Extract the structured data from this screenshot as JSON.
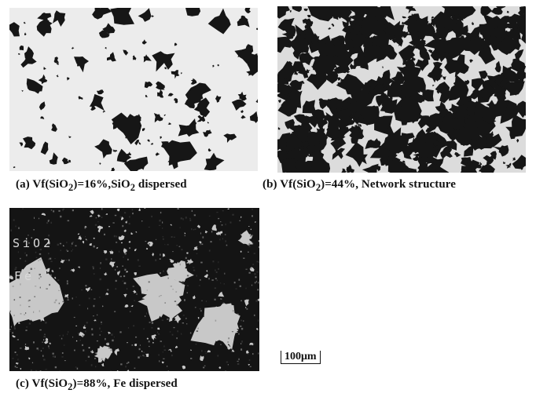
{
  "figure": {
    "panels": [
      {
        "id": "a",
        "caption_html": "(a) Vf(SiO<sub>2</sub>)=16%,SiO<sub>2</sub> dispersed",
        "vf_sio2_percent": 16,
        "structure": "SiO2 dispersed"
      },
      {
        "id": "b",
        "caption_html": "(b) Vf(SiO<sub>2</sub>)=44%, Network structure",
        "vf_sio2_percent": 44,
        "structure": "Network structure"
      },
      {
        "id": "c",
        "caption_html": "(c) Vf(SiO<sub>2</sub>)=88%, Fe dispersed",
        "vf_sio2_percent": 88,
        "structure": "Fe dispersed",
        "phase_labels": {
          "sio2": "SiO2",
          "fe": "Fe"
        }
      }
    ],
    "scale_bar": "100μm"
  },
  "colors": {
    "panel_a_bg": "#ececec",
    "panel_b_bg": "#dcdcdc",
    "panel_c_bg": "#141414",
    "particle_dark": "#161616",
    "particle_light": "#c8c8c8"
  }
}
